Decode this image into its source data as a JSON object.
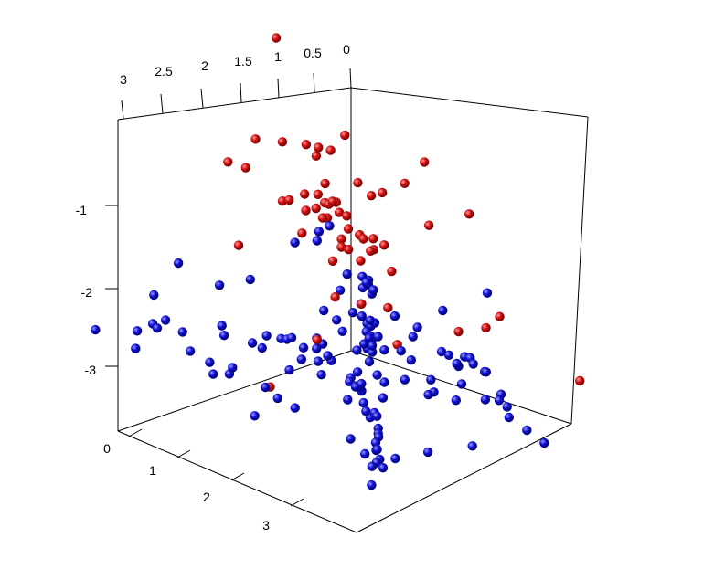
{
  "chart_data": {
    "type": "scatter",
    "title": "",
    "colors": {
      "series_a": "#b00000",
      "series_b": "#0000b0",
      "axes": "#000000",
      "background": "#ffffff"
    },
    "grid": false,
    "legend": "none",
    "axes": {
      "back_top": {
        "label": "",
        "ticks": [
          "3",
          "2.5",
          "2",
          "1.5",
          "1",
          "0.5",
          "0"
        ],
        "range": [
          0,
          3
        ]
      },
      "left_vertical": {
        "label": "",
        "ticks": [
          "-1",
          "-2",
          "-3"
        ],
        "range": [
          -3.5,
          -0.5
        ]
      },
      "front_depth": {
        "label": "",
        "ticks": [
          "0",
          "1",
          "2",
          "3"
        ],
        "range": [
          0,
          3.6
        ]
      }
    },
    "series": [
      {
        "color_key": "series_a",
        "points": [
          [
            1.11,
            0.16,
            -0.05
          ],
          [
            1.33,
            0.11,
            -1.15
          ],
          [
            1.13,
            0.27,
            -1.2
          ],
          [
            0.98,
            0.44,
            -1.23
          ],
          [
            0.76,
            0.37,
            -1.35
          ],
          [
            0.75,
            0.33,
            -1.46
          ],
          [
            0.62,
            0.39,
            -1.42
          ],
          [
            0.49,
            0.45,
            -1.27
          ],
          [
            1.52,
            0.18,
            -1.4
          ],
          [
            1.64,
            0.06,
            -1.33
          ],
          [
            0.92,
            0.64,
            -1.64
          ],
          [
            1.02,
            0.65,
            -1.73
          ],
          [
            0.97,
            0.69,
            -1.83
          ],
          [
            0.94,
            0.75,
            -1.82
          ],
          [
            0.94,
            0.82,
            -1.8
          ],
          [
            1.01,
            0.77,
            -1.97
          ],
          [
            0.99,
            0.77,
            -1.82
          ],
          [
            0.93,
            0.85,
            -1.91
          ],
          [
            1.07,
            0.77,
            -1.95
          ],
          [
            0.98,
            1.01,
            -1.89
          ],
          [
            0.95,
            1.0,
            -2.05
          ],
          [
            0.86,
            1.06,
            -2.13
          ],
          [
            0.93,
            1.19,
            -2.12
          ],
          [
            0.93,
            1.33,
            -2.08
          ],
          [
            0.97,
            1.38,
            -2.18
          ],
          [
            0.8,
            1.34,
            -2.19
          ],
          [
            1.44,
            0.61,
            -1.69
          ],
          [
            1.51,
            0.78,
            -1.61
          ],
          [
            1.65,
            1.15,
            -1.4
          ],
          [
            1.57,
            1.08,
            -1.63
          ],
          [
            1.63,
            1.29,
            -1.53
          ],
          [
            1.63,
            1.52,
            -1.39
          ],
          [
            1.3,
            1.86,
            -1.3
          ],
          [
            1.56,
            1.99,
            -1.22
          ],
          [
            1.55,
            1.79,
            -1.13
          ],
          [
            1.35,
            2.23,
            -1.08
          ],
          [
            1.37,
            2.53,
            -0.75
          ],
          [
            0.94,
            2.69,
            -1.43
          ],
          [
            0.91,
            2.09,
            -1.73
          ],
          [
            2.21,
            2.28,
            -1.53
          ],
          [
            2.21,
            2.38,
            -1.53
          ],
          [
            2.1,
            2.57,
            -1.53
          ],
          [
            2.36,
            1.89,
            -1.43
          ],
          [
            0.13,
            2.04,
            -3.15
          ],
          [
            0.31,
            1.85,
            -3.19
          ],
          [
            0.1,
            2.2,
            -2.99
          ],
          [
            2.59,
            1.25,
            -1.67
          ],
          [
            0.48,
            0.66,
            -2.65
          ],
          [
            2.45,
            1.54,
            -3.25
          ],
          [
            0.13,
            3.36,
            -3.4
          ],
          [
            0.42,
            1.03,
            -2.69
          ],
          [
            0.37,
            0.27,
            -2.54
          ],
          [
            0.68,
            0.89,
            -3.02
          ],
          [
            1.49,
            1.15,
            -3.11
          ],
          [
            0.55,
            1.12,
            -3.04
          ],
          [
            0.68,
            0.52,
            -3.04
          ],
          [
            1.06,
            1.81,
            -3.12
          ],
          [
            0.61,
            0.41,
            -2.68
          ]
        ]
      },
      {
        "color_key": "series_b",
        "points": [
          [
            2.55,
            1.37,
            -2.04
          ],
          [
            2.36,
            0.15,
            -2.24
          ],
          [
            2.72,
            0.2,
            -2.48
          ],
          [
            2.37,
            0.74,
            -2.33
          ],
          [
            2.79,
            0.44,
            -2.68
          ],
          [
            1.5,
            0.85,
            -2.08
          ],
          [
            1.49,
            1.15,
            -1.98
          ],
          [
            1.52,
            1.21,
            -1.85
          ],
          [
            1.43,
            1.26,
            -1.8
          ],
          [
            0.27,
            0.24,
            -2.98
          ],
          [
            0.12,
            0.29,
            -3.04
          ],
          [
            0.05,
            0.3,
            -3.1
          ],
          [
            0.08,
            0.33,
            -3.13
          ],
          [
            0.07,
            0.37,
            -3.23
          ],
          [
            0.07,
            0.39,
            -3.18
          ],
          [
            0.25,
            0.5,
            -3.48
          ],
          [
            0.24,
            0.54,
            -3.5
          ],
          [
            0.29,
            0.53,
            -3.55
          ],
          [
            0.32,
            0.63,
            -3.57
          ],
          [
            0.34,
            0.66,
            -3.62
          ],
          [
            0.38,
            0.67,
            -3.56
          ],
          [
            0.44,
            0.78,
            -3.67
          ],
          [
            0.46,
            0.73,
            -3.64
          ],
          [
            0.56,
            0.87,
            -3.72
          ],
          [
            0.73,
            0.89,
            -3.78
          ],
          [
            0.9,
            0.98,
            -3.77
          ],
          [
            0.98,
            1.05,
            -3.77
          ],
          [
            0.99,
            1.15,
            -3.79
          ],
          [
            1.1,
            1.35,
            -3.76
          ],
          [
            1.14,
            1.37,
            -3.7
          ],
          [
            1.33,
            1.63,
            -3.75
          ],
          [
            1.3,
            1.69,
            -3.91
          ],
          [
            1.39,
            1.73,
            -3.8
          ],
          [
            1.4,
            1.86,
            -3.78
          ],
          [
            1.45,
            1.95,
            -3.78
          ],
          [
            1.59,
            2.12,
            -3.83
          ],
          [
            1.69,
            2.23,
            -3.83
          ],
          [
            1.85,
            2.41,
            -3.77
          ],
          [
            1.96,
            2.49,
            -3.78
          ],
          [
            2.1,
            2.65,
            -3.78
          ],
          [
            2.27,
            2.84,
            -3.82
          ],
          [
            2.42,
            2.94,
            -3.79
          ],
          [
            2.46,
            3.14,
            -3.74
          ],
          [
            2.81,
            3.36,
            -3.77
          ],
          [
            1.69,
            0.03,
            -3.19
          ],
          [
            1.48,
            0.43,
            -3.26
          ],
          [
            1.43,
            0.58,
            -3.27
          ],
          [
            1.16,
            0.6,
            -3.45
          ],
          [
            1.15,
            0.86,
            -3.34
          ],
          [
            0.89,
            0.59,
            -3.11
          ],
          [
            0.79,
            0.66,
            -3.23
          ],
          [
            0.87,
            0.83,
            -3.29
          ],
          [
            0.94,
            1.21,
            -3.31
          ],
          [
            0.79,
            1.16,
            -3.39
          ],
          [
            0.57,
            0.47,
            -3.01
          ],
          [
            0.49,
            0.75,
            -2.87
          ],
          [
            0.58,
            0.66,
            -3.21
          ],
          [
            0.39,
            0.76,
            -3.36
          ],
          [
            0.56,
            1.08,
            -3.53
          ],
          [
            0.41,
            0.6,
            -3.32
          ],
          [
            0.23,
            0.39,
            -3.29
          ],
          [
            0.36,
            0.56,
            -3.02
          ],
          [
            0.25,
            0.89,
            -3.29
          ],
          [
            0.17,
            1.12,
            -3.38
          ],
          [
            0.21,
            1.1,
            -3.48
          ],
          [
            0.28,
            1.58,
            -3.5
          ],
          [
            0.25,
            1.65,
            -3.53
          ],
          [
            0.3,
            1.84,
            -3.59
          ],
          [
            0.35,
            1.98,
            -3.43
          ],
          [
            0.37,
            2.08,
            -3.41
          ],
          [
            0.43,
            2.19,
            -3.43
          ],
          [
            0.44,
            2.36,
            -3.47
          ],
          [
            0.52,
            2.47,
            -3.42
          ],
          [
            0.65,
            2.6,
            -3.66
          ],
          [
            0.65,
            2.82,
            -3.54
          ],
          [
            0.81,
            2.97,
            -3.52
          ],
          [
            0.9,
            3.18,
            -3.51
          ],
          [
            0.94,
            3.25,
            -3.6
          ],
          [
            0.82,
            3.37,
            -3.75
          ],
          [
            0.67,
            3.45,
            -3.92
          ],
          [
            2.87,
            1.47,
            -2.92
          ],
          [
            2.81,
            1.36,
            -3.04
          ],
          [
            2.88,
            1.16,
            -2.94
          ],
          [
            2.52,
            1.55,
            -3.23
          ],
          [
            2.63,
            1.52,
            -3.53
          ],
          [
            2.56,
            2.01,
            -3.33
          ],
          [
            2.22,
            2.38,
            -3.24
          ],
          [
            2.08,
            2.42,
            -3.09
          ],
          [
            2.21,
            2.0,
            -3.06
          ],
          [
            1.91,
            1.76,
            -3.0
          ],
          [
            2.04,
            2.7,
            -3.01
          ],
          [
            1.75,
            3.0,
            -3.16
          ],
          [
            1.43,
            3.04,
            -3.31
          ],
          [
            1.65,
            2.65,
            -2.89
          ],
          [
            1.21,
            2.81,
            -3.02
          ],
          [
            1.22,
            2.89,
            -3.23
          ],
          [
            1.73,
            2.34,
            -3.38
          ],
          [
            2.6,
            1.81,
            -3.26
          ],
          [
            3.0,
            1.34,
            -2.99
          ],
          [
            2.69,
            0.57,
            -2.81
          ],
          [
            2.79,
            0.26,
            -2.77
          ],
          [
            2.98,
            0.53,
            -2.69
          ],
          [
            3.09,
            0.37,
            -2.73
          ],
          [
            3.3,
            0.01,
            -2.75
          ],
          [
            3.02,
            0.27,
            -2.98
          ],
          [
            2.53,
            2.76,
            -3.49
          ],
          [
            2.41,
            2.83,
            -3.68
          ],
          [
            2.38,
            2.97,
            -3.6
          ],
          [
            2.22,
            2.83,
            -3.8
          ],
          [
            2.22,
            3.05,
            -3.73
          ],
          [
            1.91,
            3.17,
            -3.72
          ],
          [
            1.53,
            3.38,
            -3.71
          ],
          [
            1.15,
            2.38,
            -3.34
          ],
          [
            1.45,
            2.75,
            -3.29
          ],
          [
            1.43,
            1.08,
            -3.13
          ],
          [
            1.72,
            0.98,
            -3.08
          ],
          [
            2.01,
            0.81,
            -3.08
          ],
          [
            2.39,
            0.35,
            -3.18
          ],
          [
            2.11,
            0.52,
            -3.04
          ],
          [
            1.48,
            1.34,
            -3.3
          ],
          [
            1.68,
            1.35,
            -3.1
          ],
          [
            1.47,
            1.69,
            -3.09
          ],
          [
            1.08,
            1.56,
            -3.09
          ],
          [
            0.97,
            1.33,
            -3.0
          ],
          [
            0.54,
            1.88,
            -2.87
          ],
          [
            0.36,
            2.31,
            -2.61
          ],
          [
            1.33,
            2.21,
            -3.33
          ],
          [
            1.14,
            1.95,
            -3.13
          ],
          [
            1.86,
            1.57,
            -3.13
          ],
          [
            2.11,
            1.61,
            -3.02
          ],
          [
            2.34,
            1.69,
            -3.05
          ],
          [
            2.16,
            1.11,
            -3.01
          ],
          [
            1.88,
            1.22,
            -2.95
          ],
          [
            1.63,
            2.15,
            -3.2
          ],
          [
            1.89,
            2.13,
            -3.26
          ]
        ]
      }
    ]
  }
}
